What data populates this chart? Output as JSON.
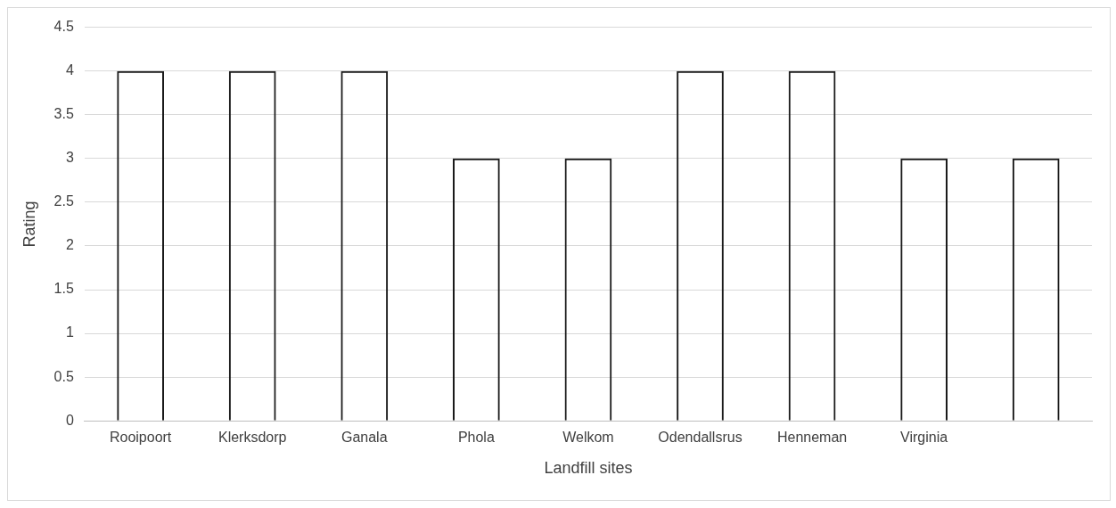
{
  "chart_data": {
    "type": "bar",
    "xlabel": "Landfill sites",
    "ylabel": "Rating",
    "categories": [
      "Rooipoort",
      "Klerksdorp",
      "Ganala",
      "Phola",
      "Welkom",
      "Odendallsrus",
      "Henneman",
      "Virginia",
      null
    ],
    "values": [
      4,
      4,
      4,
      3,
      3,
      4,
      4,
      3,
      3
    ],
    "color": "#1a1a1a",
    "ylim": [
      0,
      4.5
    ],
    "yticks": [
      0,
      0.5,
      1,
      1.5,
      2,
      2.5,
      3,
      3.5,
      4,
      4.5
    ],
    "grid": "y",
    "legend": false
  }
}
